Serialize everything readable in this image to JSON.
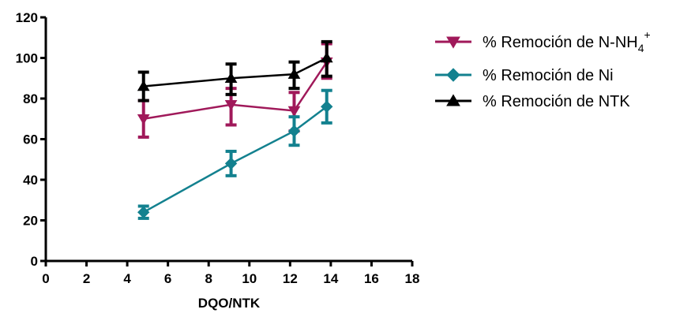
{
  "chart_data": {
    "type": "line",
    "xlabel": "DQO/NTK",
    "ylabel": "",
    "xlim": [
      0,
      18
    ],
    "ylim": [
      0,
      120
    ],
    "xticks": [
      "0",
      "2",
      "4",
      "6",
      "8",
      "10",
      "12",
      "14",
      "16",
      "18"
    ],
    "yticks": [
      "0",
      "20",
      "40",
      "60",
      "80",
      "100",
      "120"
    ],
    "grid": false,
    "legend_position": "right",
    "series": [
      {
        "name": "% Remoción de N-NH",
        "name_sub": "4",
        "name_sup": "+",
        "color": "#a0195a",
        "marker": "triangle-down",
        "x": [
          4.8,
          9.1,
          12.2,
          13.8
        ],
        "y": [
          70,
          77,
          74,
          98
        ],
        "err_up": [
          9,
          8,
          9,
          9
        ],
        "err_down": [
          9,
          10,
          10,
          8
        ]
      },
      {
        "name": "% Remoción de Ni",
        "color": "#13818f",
        "marker": "diamond",
        "x": [
          4.8,
          9.1,
          12.2,
          13.8
        ],
        "y": [
          24,
          48,
          64,
          76
        ],
        "err_up": [
          3,
          6,
          7,
          8
        ],
        "err_down": [
          3,
          6,
          7,
          8
        ]
      },
      {
        "name": "% Remoción de NTK",
        "color": "#000000",
        "marker": "triangle-up",
        "x": [
          4.8,
          9.1,
          12.2,
          13.8
        ],
        "y": [
          86,
          90,
          92,
          100
        ],
        "err_up": [
          7,
          7,
          6,
          8
        ],
        "err_down": [
          7,
          8,
          7,
          9
        ]
      }
    ]
  }
}
